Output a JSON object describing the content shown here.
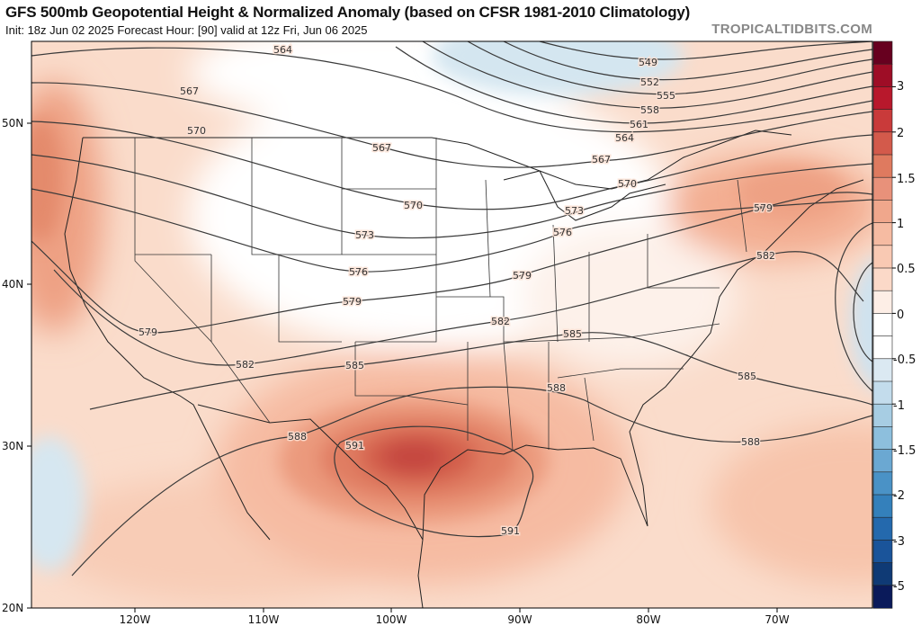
{
  "header": {
    "title": "GFS 500mb Geopotential Height & Normalized Anomaly (based on CFSR 1981-2010 Climatology)",
    "subtitle": "Init: 18z Jun 02 2025   Forecast Hour: [90]   valid at 12z Fri, Jun 06 2025",
    "brand": "TROPICALTIDBITS.COM"
  },
  "axes": {
    "lat_labels": [
      "50N",
      "40N",
      "30N",
      "20N"
    ],
    "lon_labels": [
      "120W",
      "110W",
      "100W",
      "90W",
      "80W",
      "70W"
    ]
  },
  "colorbar": {
    "labels": [
      "3",
      "2",
      "1.5",
      "1",
      "0.5",
      "0",
      "-0.5",
      "-1",
      "-1.5",
      "-2",
      "-3",
      "-5"
    ],
    "colors": [
      "#67001f",
      "#9e0d26",
      "#b8182c",
      "#c93a3a",
      "#d35a4b",
      "#df7a5f",
      "#e8917a",
      "#f0a78c",
      "#f6bba2",
      "#f9c9b3",
      "#fbd9c8",
      "#fdeee6",
      "#ffffff",
      "#ffffff",
      "#dbe9f2",
      "#c3dcec",
      "#a7cde3",
      "#8dbfdd",
      "#6ba8d2",
      "#4a92c6",
      "#3480bb",
      "#2469ad",
      "#1a549a",
      "#0f3a75",
      "#0a1a5a"
    ]
  },
  "contour_labels": [
    "564",
    "567",
    "570",
    "549",
    "552",
    "555",
    "558",
    "561",
    "564",
    "567",
    "570",
    "573",
    "576",
    "579",
    "582",
    "567",
    "570",
    "573",
    "576",
    "579",
    "579",
    "582",
    "585",
    "582",
    "585",
    "588",
    "585",
    "588",
    "591",
    "588",
    "591",
    "579"
  ]
}
